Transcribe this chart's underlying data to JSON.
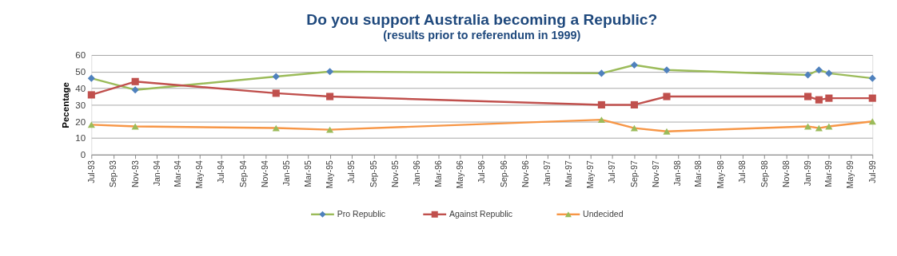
{
  "chart_data": {
    "type": "line",
    "title": "Do you support Australia becoming a Republic?",
    "subtitle": "(results prior to referendum in 1999)",
    "ylabel": "Pecentage",
    "x": [
      "1993-07",
      "1993-11",
      "1994-12",
      "1995-05",
      "1997-06",
      "1997-09",
      "1997-12",
      "1999-01",
      "1999-02",
      "1999-03",
      "1999-07"
    ],
    "series": [
      {
        "name": "Pro Republic",
        "color": "#9bbb59",
        "marker": "diamond",
        "colors": [
          "#4f81bd",
          "#4f81bd",
          "#4f81bd",
          "#4f81bd",
          "#4f81bd",
          "#4f81bd",
          "#4f81bd",
          "#4f81bd",
          "#4f81bd",
          "#4f81bd",
          "#4f81bd"
        ],
        "values": [
          46,
          39,
          47,
          50,
          49,
          54,
          51,
          48,
          51,
          49,
          46
        ]
      },
      {
        "name": "Against Republic",
        "color": "#c0504d",
        "marker": "square",
        "colors": [
          "#c0504d",
          "#c0504d",
          "#c0504d",
          "#c0504d",
          "#c0504d",
          "#c0504d",
          "#c0504d",
          "#c0504d",
          "#c0504d",
          "#c0504d",
          "#c0504d"
        ],
        "values": [
          36,
          44,
          37,
          35,
          30,
          30,
          35,
          35,
          33,
          34,
          34
        ]
      },
      {
        "name": "Undecided",
        "color": "#f79646",
        "marker": "triangle",
        "colors": [
          "#9bbb59",
          "#9bbb59",
          "#9bbb59",
          "#9bbb59",
          "#9bbb59",
          "#9bbb59",
          "#9bbb59",
          "#9bbb59",
          "#9bbb59",
          "#9bbb59",
          "#9bbb59"
        ],
        "values": [
          18,
          17,
          16,
          15,
          21,
          16,
          14,
          17,
          16,
          17,
          20
        ]
      }
    ],
    "xlim": [
      "1993-07",
      "1999-07"
    ],
    "xticks": [
      {
        "value": "1993-07",
        "label": "Jul-93"
      },
      {
        "value": "1993-09",
        "label": "Sep-93"
      },
      {
        "value": "1993-11",
        "label": "Nov-93"
      },
      {
        "value": "1994-01",
        "label": "Jan-94"
      },
      {
        "value": "1994-03",
        "label": "Mar-94"
      },
      {
        "value": "1994-05",
        "label": "May-94"
      },
      {
        "value": "1994-07",
        "label": "Jul-94"
      },
      {
        "value": "1994-09",
        "label": "Sep-94"
      },
      {
        "value": "1994-11",
        "label": "Nov-94"
      },
      {
        "value": "1995-01",
        "label": "Jan-95"
      },
      {
        "value": "1995-03",
        "label": "Mar-95"
      },
      {
        "value": "1995-05",
        "label": "May-95"
      },
      {
        "value": "1995-07",
        "label": "Jul-95"
      },
      {
        "value": "1995-09",
        "label": "Sep-95"
      },
      {
        "value": "1995-11",
        "label": "Nov-95"
      },
      {
        "value": "1996-01",
        "label": "Jan-96"
      },
      {
        "value": "1996-03",
        "label": "Mar-96"
      },
      {
        "value": "1996-05",
        "label": "May-96"
      },
      {
        "value": "1996-07",
        "label": "Jul-96"
      },
      {
        "value": "1996-09",
        "label": "Sep-96"
      },
      {
        "value": "1996-11",
        "label": "Nov-96"
      },
      {
        "value": "1997-01",
        "label": "Jan-97"
      },
      {
        "value": "1997-03",
        "label": "Mar-97"
      },
      {
        "value": "1997-05",
        "label": "May-97"
      },
      {
        "value": "1997-07",
        "label": "Jul-97"
      },
      {
        "value": "1997-09",
        "label": "Sep-97"
      },
      {
        "value": "1997-11",
        "label": "Nov-97"
      },
      {
        "value": "1998-01",
        "label": "Jan-98"
      },
      {
        "value": "1998-03",
        "label": "Mar-98"
      },
      {
        "value": "1998-05",
        "label": "May-98"
      },
      {
        "value": "1998-07",
        "label": "Jul-98"
      },
      {
        "value": "1998-09",
        "label": "Sep-98"
      },
      {
        "value": "1998-11",
        "label": "Nov-98"
      },
      {
        "value": "1999-01",
        "label": "Jan-99"
      },
      {
        "value": "1999-03",
        "label": "Mar-99"
      },
      {
        "value": "1999-05",
        "label": "May-99"
      },
      {
        "value": "1999-07",
        "label": "Jul-99"
      }
    ],
    "ylim": [
      0,
      60
    ],
    "yticks": [
      0,
      10,
      20,
      30,
      40,
      50,
      60
    ],
    "grid": "y",
    "legend": "bottom",
    "line_style": "solid"
  }
}
